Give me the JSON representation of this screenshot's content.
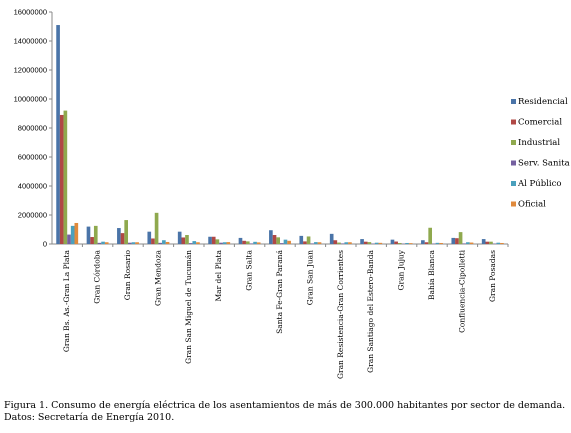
{
  "chart_data": {
    "type": "bar",
    "title": "",
    "xlabel": "",
    "ylabel": "",
    "ylim": [
      0,
      16000000
    ],
    "yticks": [
      0,
      2000000,
      4000000,
      6000000,
      8000000,
      10000000,
      12000000,
      14000000,
      16000000
    ],
    "grid": false,
    "legend": "right",
    "categories": [
      "Gran Bs. As.-Gran La Plata",
      "Gran Córdoba",
      "Gran Rosario",
      "Gran Mendoza",
      "Gran San Miguel de Tucumán",
      "Mar del Plata",
      "Gran Salta",
      "Santa Fe-Gran Paraná",
      "Gran San Juan",
      "Gran Resistencia-Gran Corrientes",
      "Gran Santiago del Estero-Banda",
      "Gran Jujuy",
      "Bahía Blanca",
      "Confluencia-Cipolletti",
      "Gran Posadas"
    ],
    "series": [
      {
        "name": "Residencial",
        "color": "#4a74a8",
        "values": [
          15100000,
          1200000,
          1100000,
          850000,
          850000,
          500000,
          420000,
          950000,
          560000,
          700000,
          340000,
          300000,
          260000,
          420000,
          340000
        ]
      },
      {
        "name": "Comercial",
        "color": "#b04845",
        "values": [
          8900000,
          480000,
          750000,
          380000,
          450000,
          500000,
          220000,
          620000,
          180000,
          260000,
          160000,
          170000,
          120000,
          400000,
          160000
        ]
      },
      {
        "name": "Industrial",
        "color": "#8fa94e",
        "values": [
          9200000,
          1250000,
          1650000,
          2150000,
          620000,
          320000,
          180000,
          460000,
          520000,
          100000,
          130000,
          70000,
          1120000,
          820000,
          160000
        ]
      },
      {
        "name": "Serv. Sanita",
        "color": "#7560a0",
        "values": [
          650000,
          80000,
          90000,
          80000,
          60000,
          90000,
          40000,
          60000,
          40000,
          40000,
          30000,
          25000,
          30000,
          40000,
          30000
        ]
      },
      {
        "name": "Al Público",
        "color": "#4aa0bd",
        "values": [
          1250000,
          160000,
          120000,
          260000,
          200000,
          120000,
          150000,
          300000,
          130000,
          120000,
          90000,
          70000,
          80000,
          120000,
          90000
        ]
      },
      {
        "name": "Oficial",
        "color": "#e08a3c",
        "values": [
          1450000,
          120000,
          120000,
          140000,
          120000,
          130000,
          110000,
          220000,
          120000,
          120000,
          80000,
          60000,
          70000,
          100000,
          70000
        ]
      }
    ]
  },
  "caption": {
    "line1": "Figura 1. Consumo de energía eléctrica de los asentamientos de más de 300.000 habitantes por sector de demanda.",
    "line2": "Datos: Secretaría de Energía 2010."
  }
}
